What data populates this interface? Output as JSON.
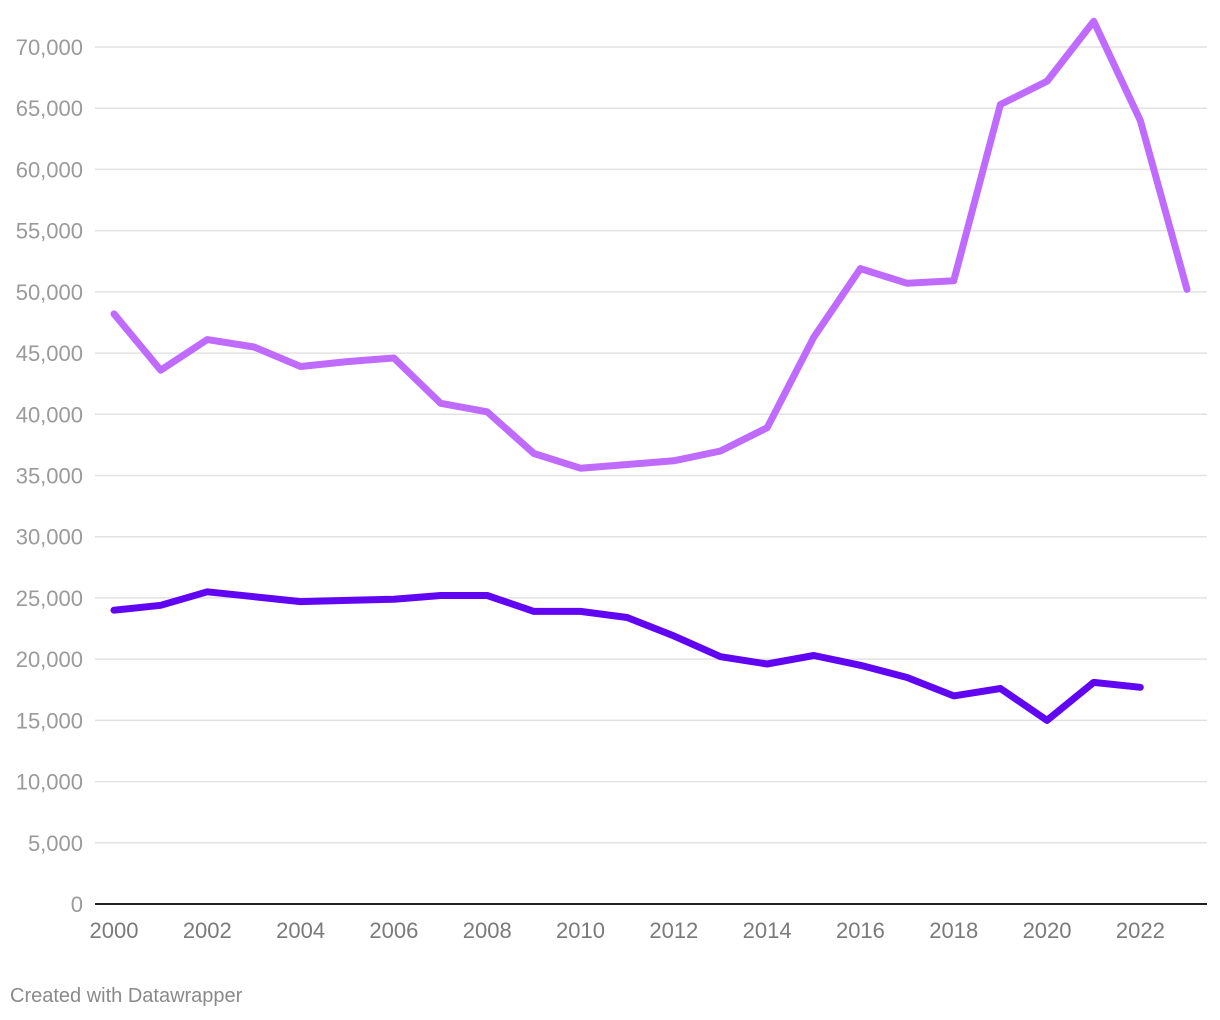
{
  "chart_data": {
    "type": "line",
    "title": "",
    "xlabel": "",
    "ylabel": "",
    "x": [
      2000,
      2001,
      2002,
      2003,
      2004,
      2005,
      2006,
      2007,
      2008,
      2009,
      2010,
      2011,
      2012,
      2013,
      2014,
      2015,
      2016,
      2017,
      2018,
      2019,
      2020,
      2021,
      2022,
      2023
    ],
    "series": [
      {
        "color": "#c06bff",
        "values": [
          48200,
          43600,
          46100,
          45500,
          43900,
          44300,
          44600,
          40900,
          40200,
          36800,
          35600,
          35900,
          36200,
          37000,
          38900,
          46300,
          51900,
          50700,
          50900,
          65300,
          67200,
          72100,
          64000,
          50200
        ]
      },
      {
        "color": "#6106f3",
        "values": [
          24000,
          24400,
          25500,
          25100,
          24700,
          24800,
          24900,
          25200,
          25200,
          23900,
          23900,
          23400,
          21900,
          20200,
          19600,
          20300,
          19500,
          18500,
          17000,
          17600,
          15000,
          18100,
          17700,
          null
        ]
      }
    ],
    "ylim": [
      0,
      70000
    ],
    "y_ticks": [
      0,
      5000,
      10000,
      15000,
      20000,
      25000,
      30000,
      35000,
      40000,
      45000,
      50000,
      55000,
      60000,
      65000,
      70000
    ],
    "y_tick_labels": [
      "0",
      "5,000",
      "10,000",
      "15,000",
      "20,000",
      "25,000",
      "30,000",
      "35,000",
      "40,000",
      "45,000",
      "50,000",
      "55,000",
      "60,000",
      "65,000",
      "70,000"
    ],
    "x_ticks": [
      2000,
      2002,
      2004,
      2006,
      2008,
      2010,
      2012,
      2014,
      2016,
      2018,
      2020,
      2022
    ],
    "x_tick_labels": [
      "2000",
      "2002",
      "2004",
      "2006",
      "2008",
      "2010",
      "2012",
      "2014",
      "2016",
      "2018",
      "2020",
      "2022"
    ],
    "grid": true,
    "legend": "none"
  },
  "footer": {
    "credit": "Created with Datawrapper"
  }
}
